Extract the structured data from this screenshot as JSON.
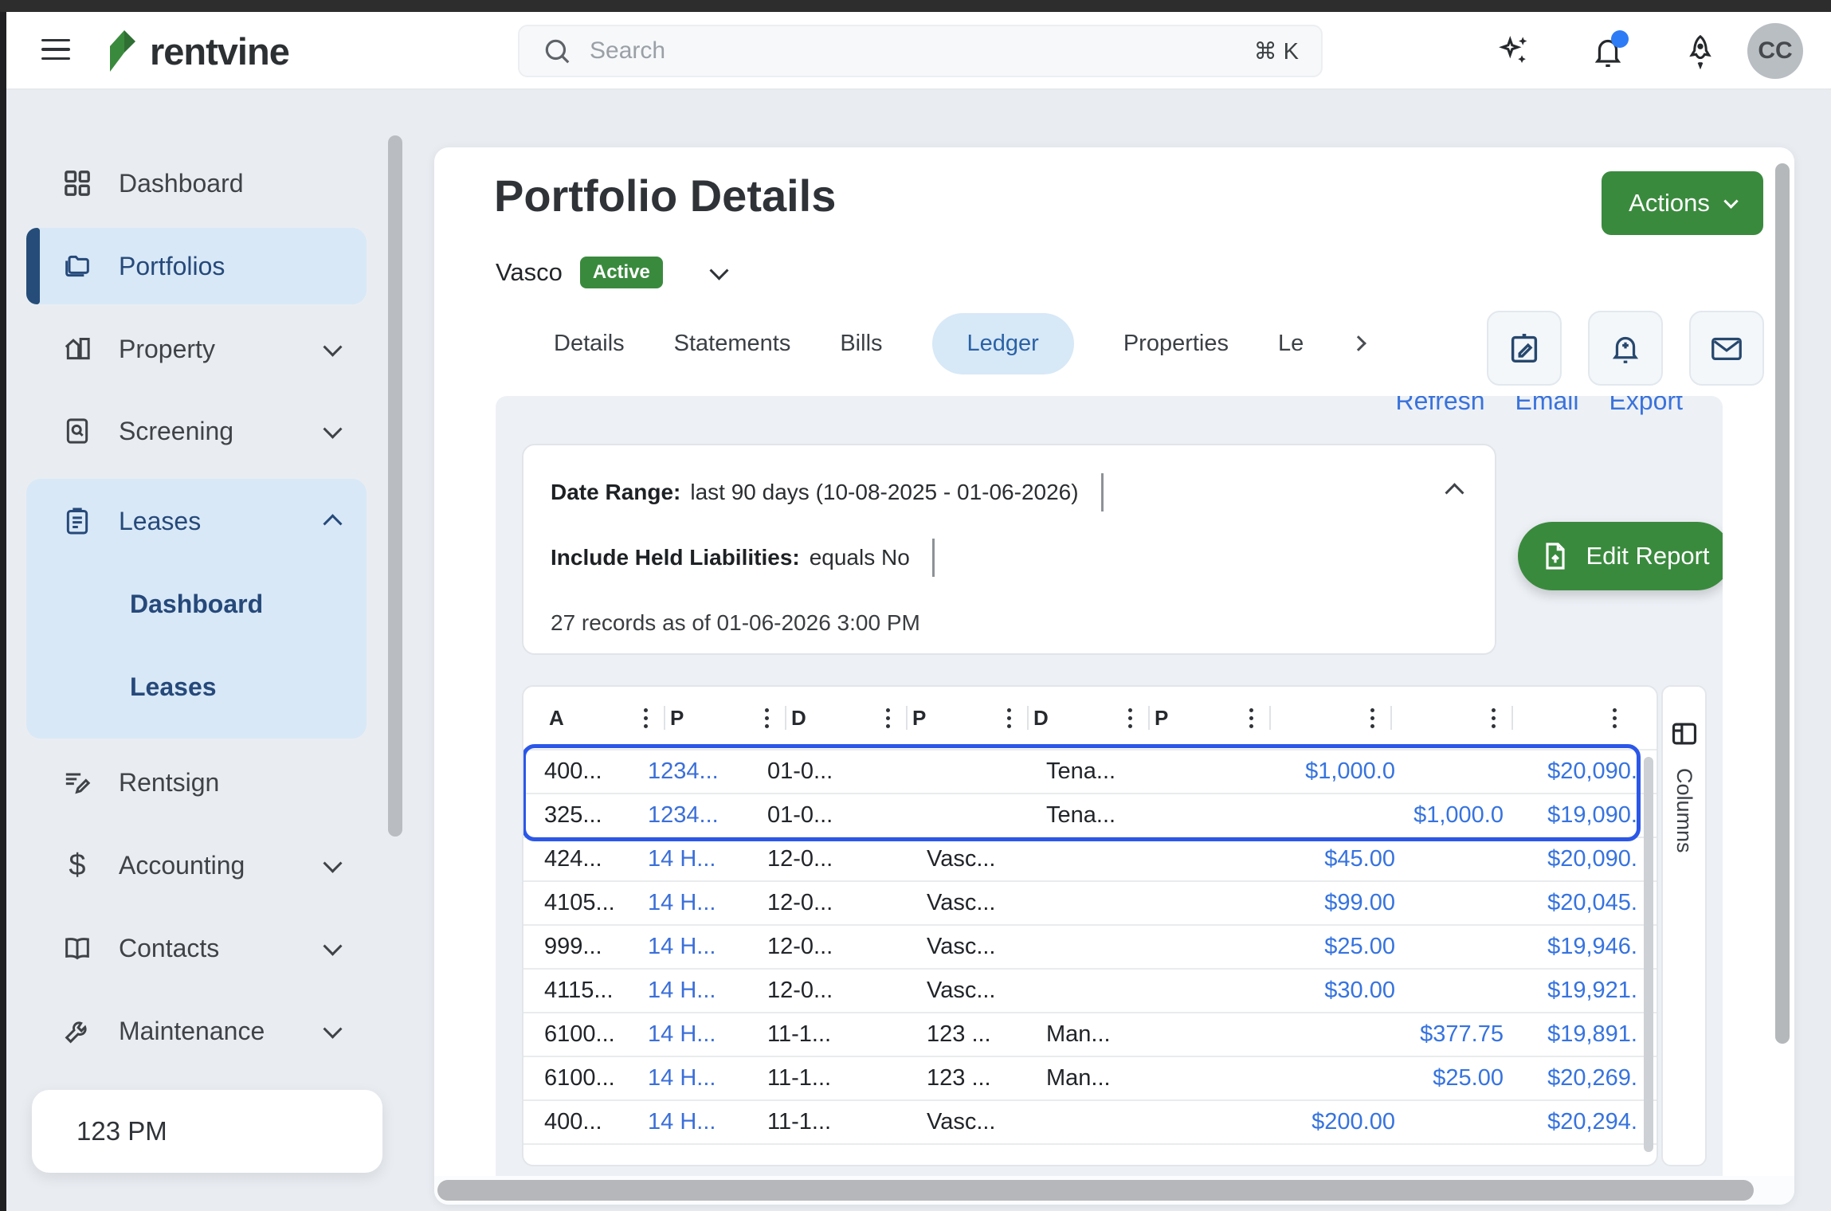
{
  "topbar": {
    "brand": "rentvine",
    "search_placeholder": "Search",
    "search_shortcut": "⌘ K",
    "avatar_initials": "CC"
  },
  "sidebar": {
    "items": [
      {
        "label": "Dashboard"
      },
      {
        "label": "Portfolios"
      },
      {
        "label": "Property"
      },
      {
        "label": "Screening"
      },
      {
        "label": "Leases",
        "children": [
          "Dashboard",
          "Leases"
        ]
      },
      {
        "label": "Rentsign"
      },
      {
        "label": "Accounting"
      },
      {
        "label": "Contacts"
      },
      {
        "label": "Maintenance"
      }
    ],
    "footer": "123 PM"
  },
  "page": {
    "title": "Portfolio Details",
    "entity_name": "Vasco",
    "status": "Active",
    "actions_label": "Actions",
    "tabs": [
      "Details",
      "Statements",
      "Bills",
      "Ledger",
      "Properties",
      "Le"
    ],
    "active_tab": "Ledger",
    "links": {
      "refresh": "Refresh",
      "email": "Email",
      "export": "Export"
    },
    "filters": {
      "date_range_label": "Date Range:",
      "date_range_value": "last 90 days (10-08-2025 - 01-06-2026)",
      "include_label": "Include Held Liabilities:",
      "include_value": "equals No",
      "records_text": "27 records as of 01-06-2026 3:00 PM"
    },
    "edit_report_label": "Edit Report",
    "columns_panel_label": "Columns"
  },
  "table": {
    "headers": [
      "A",
      "P",
      "D",
      "P",
      "D",
      "P",
      "",
      "",
      ""
    ],
    "rows": [
      {
        "account": "400...",
        "property": "1234...",
        "date": "01-0...",
        "unit": "",
        "payee": "Tena...",
        "payment": "$1,000.0",
        "deposit": "",
        "balance": "$20,090.",
        "selected": true
      },
      {
        "account": "325...",
        "property": "1234...",
        "date": "01-0...",
        "unit": "",
        "payee": "Tena...",
        "payment": "",
        "deposit": "$1,000.0",
        "balance": "$19,090.",
        "selected": true
      },
      {
        "account": "424...",
        "property": "14 H...",
        "date": "12-0...",
        "unit": "Vasc...",
        "payee": "",
        "payment": "$45.00",
        "deposit": "",
        "balance": "$20,090."
      },
      {
        "account": "4105...",
        "property": "14 H...",
        "date": "12-0...",
        "unit": "Vasc...",
        "payee": "",
        "payment": "$99.00",
        "deposit": "",
        "balance": "$20,045."
      },
      {
        "account": "999...",
        "property": "14 H...",
        "date": "12-0...",
        "unit": "Vasc...",
        "payee": "",
        "payment": "$25.00",
        "deposit": "",
        "balance": "$19,946."
      },
      {
        "account": "4115...",
        "property": "14 H...",
        "date": "12-0...",
        "unit": "Vasc...",
        "payee": "",
        "payment": "$30.00",
        "deposit": "",
        "balance": "$19,921."
      },
      {
        "account": "6100...",
        "property": "14 H...",
        "date": "11-1...",
        "unit": "123 ...",
        "payee": "Man...",
        "payment": "",
        "deposit": "$377.75",
        "balance": "$19,891."
      },
      {
        "account": "6100...",
        "property": "14 H...",
        "date": "11-1...",
        "unit": "123 ...",
        "payee": "Man...",
        "payment": "",
        "deposit": "$25.00",
        "balance": "$20,269."
      },
      {
        "account": "400...",
        "property": "14 H...",
        "date": "11-1...",
        "unit": "Vasc...",
        "payee": "",
        "payment": "$200.00",
        "deposit": "",
        "balance": "$20,294."
      }
    ]
  },
  "colors": {
    "accent_green": "#3a8a3e",
    "link_blue": "#3b6fd8",
    "amount_blue": "#3673df",
    "selection_outline_blue": "#2b57e8",
    "active_nav_bg": "#d8e8f6",
    "nav_navy": "#26497a",
    "notification_dot_blue": "#2e7bf6",
    "topbar_strip": "#2d2d2e"
  }
}
